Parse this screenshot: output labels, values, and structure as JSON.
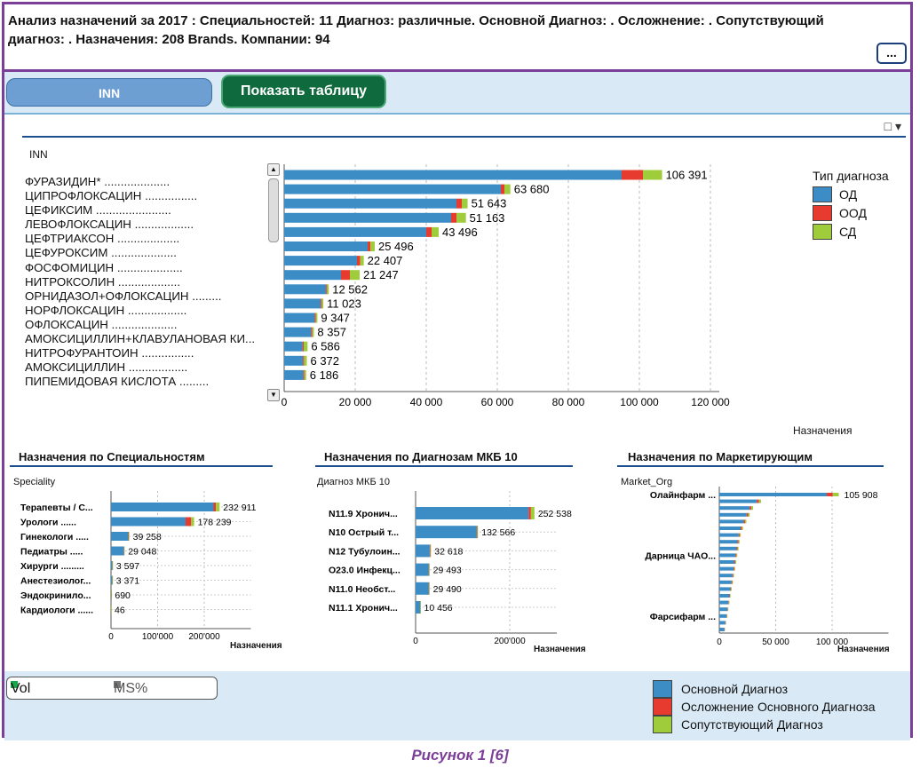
{
  "header": {
    "text": "Анализ назначений за 2017 : Специальностей: 11 Диагноз: различные. Основной Диагноз: . Осложнение: . Сопутствующий диагноз: . Назначения: 208 Brands. Компании: 94",
    "more_label": "..."
  },
  "toolbar": {
    "inn_label": "INN",
    "show_table_label": "Показать таблицу"
  },
  "main": {
    "dim_label": "INN",
    "xlabel": "Назначения",
    "legend_title": "Тип диагноза",
    "legend": [
      {
        "label": "ОД",
        "color": "#3c8cc6"
      },
      {
        "label": "ООД",
        "color": "#e63b2e"
      },
      {
        "label": "СД",
        "color": "#9fcc3b"
      }
    ],
    "icons": {
      "window": "window-icon",
      "menu": "dropdown-icon"
    }
  },
  "sub_titles": {
    "speciality": "Назначения по Специальностям",
    "diagnosis": "Назначения по Диагнозам МКБ 10",
    "marketer": "Назначения по Маркетирующим"
  },
  "sub_dims": {
    "speciality": "Speciality",
    "diagnosis": "Диагноз МКБ 10",
    "marketer": "Market_Org"
  },
  "sub_xlabel": "Назначения",
  "chart_data": [
    {
      "type": "bar",
      "orientation": "horizontal",
      "stacked": true,
      "title": "",
      "xlabel": "Назначения",
      "ylabel": "INN",
      "xlim": [
        0,
        120000
      ],
      "xticks": [
        "0",
        "20 000",
        "40 000",
        "60 000",
        "80 000",
        "100 000",
        "120 000"
      ],
      "categories": [
        "ФУРАЗИДИН* ....................",
        "ЦИПРОФЛОКСАЦИН ................",
        "ЦЕФИКСИМ .......................",
        "ЛЕВОФЛОКСАЦИН ..................",
        "ЦЕФТРИАКСОН ...................",
        "ЦЕФУРОКСИМ ....................",
        "ФОСФОМИЦИН ....................",
        "НИТРОКСОЛИН ...................",
        "ОРНИДАЗОЛ+ОФЛОКСАЦИН .........",
        "НОРФЛОКСАЦИН ..................",
        "ОФЛОКСАЦИН ....................",
        "АМОКСИЦИЛЛИН+КЛАВУЛАНОВАЯ КИ...",
        "НИТРОФУРАНТОИН ................",
        "АМОКСИЦИЛЛИН ..................",
        "ПИПЕМИДОВАЯ КИСЛОТА ........."
      ],
      "totals": [
        "106 391",
        "63 680",
        "51 643",
        "51 163",
        "43 496",
        "25 496",
        "22 407",
        "21 247",
        "12 562",
        "11 023",
        "9 347",
        "8 357",
        "6 586",
        "6 372",
        "6 186"
      ],
      "series": [
        {
          "name": "ОД",
          "color": "#3c8cc6",
          "values": [
            95000,
            61000,
            48500,
            47000,
            40000,
            23500,
            20500,
            16000,
            11800,
            10300,
            8600,
            7600,
            5200,
            5300,
            5400
          ]
        },
        {
          "name": "ООД",
          "color": "#e63b2e",
          "values": [
            6000,
            1000,
            1500,
            1500,
            1500,
            800,
            900,
            2500,
            300,
            300,
            300,
            300,
            300,
            300,
            300
          ]
        },
        {
          "name": "СД",
          "color": "#9fcc3b",
          "values": [
            5391,
            1680,
            1643,
            2663,
            1996,
            1196,
            1007,
            2747,
            462,
            423,
            447,
            457,
            1086,
            772,
            486
          ]
        }
      ],
      "legend": "right"
    },
    {
      "type": "bar",
      "orientation": "horizontal",
      "stacked": true,
      "title": "Назначения по Специальностям",
      "xlabel": "Назначения",
      "ylabel": "Speciality",
      "xlim": [
        0,
        300000
      ],
      "xticks": [
        "0",
        "100'000",
        "200'000"
      ],
      "categories": [
        "Терапевты / С...",
        "Урологи ......",
        "Гинекологи .....",
        "Педиатры .....",
        "Хирурги .........",
        "Анестезиолог...",
        "Эндокринило...",
        "Кардиологи ......"
      ],
      "totals": [
        "232 911",
        "178 239",
        "39 258",
        "29 048",
        "3 597",
        "3 371",
        "690",
        "46"
      ],
      "series": [
        {
          "name": "ОД",
          "color": "#3c8cc6",
          "values": [
            220000,
            160000,
            37000,
            27500,
            2800,
            2700,
            600,
            40
          ]
        },
        {
          "name": "ООД",
          "color": "#e63b2e",
          "values": [
            5000,
            12000,
            1000,
            500,
            300,
            300,
            40,
            3
          ]
        },
        {
          "name": "СД",
          "color": "#9fcc3b",
          "values": [
            7911,
            6239,
            1258,
            1048,
            497,
            371,
            50,
            3
          ]
        }
      ]
    },
    {
      "type": "bar",
      "orientation": "horizontal",
      "stacked": true,
      "title": "Назначения по Диагнозам МКБ 10",
      "xlabel": "Назначения",
      "ylabel": "Диагноз МКБ 10",
      "xlim": [
        0,
        300000
      ],
      "xticks": [
        "0",
        "200'000"
      ],
      "categories": [
        "N11.9 Хронич...",
        "N10 Острый т...",
        "N12 Тубулоин...",
        "O23.0 Инфекц...",
        "N11.0 Необст...",
        "N11.1 Хронич..."
      ],
      "totals": [
        "252 538",
        "132 566",
        "32 618",
        "29 493",
        "29 490",
        "10 456"
      ],
      "series": [
        {
          "name": "ОД",
          "color": "#3c8cc6",
          "values": [
            240000,
            130000,
            30000,
            28000,
            28000,
            10000
          ]
        },
        {
          "name": "ООД",
          "color": "#e63b2e",
          "values": [
            5000,
            1000,
            1500,
            700,
            700,
            200
          ]
        },
        {
          "name": "СД",
          "color": "#9fcc3b",
          "values": [
            7538,
            1566,
            1118,
            793,
            790,
            256
          ]
        }
      ]
    },
    {
      "type": "bar",
      "orientation": "horizontal",
      "stacked": true,
      "title": "Назначения по Маркетирующим",
      "xlabel": "Назначения",
      "ylabel": "Market_Org",
      "xlim": [
        0,
        150000
      ],
      "xticks": [
        "0",
        "50 000",
        "100 000"
      ],
      "categories": [
        "Олайнфарм ...",
        "Дарница ЧАО...",
        "Фарсифарм ..."
      ],
      "first_total": "105 908",
      "bar_values": [
        105908,
        37000,
        30000,
        27000,
        24000,
        21000,
        19000,
        18000,
        17000,
        16000,
        15000,
        14000,
        13000,
        12000,
        11000,
        10000,
        9000,
        8000,
        7000,
        6000,
        5000
      ],
      "series": [
        {
          "name": "ОД",
          "color": "#3c8cc6"
        },
        {
          "name": "ООД",
          "color": "#e63b2e"
        },
        {
          "name": "СД",
          "color": "#9fcc3b"
        }
      ]
    }
  ],
  "bottom": {
    "vol_label": "Vol",
    "ms_label": "MS%",
    "legend": [
      {
        "label": "Основной Диагноз",
        "color": "#3c8cc6"
      },
      {
        "label": "Осложнение Основного Диагноза",
        "color": "#e63b2e"
      },
      {
        "label": "Сопутствующий Диагноз",
        "color": "#9fcc3b"
      }
    ]
  },
  "caption": "Рисунок 1 [6]"
}
